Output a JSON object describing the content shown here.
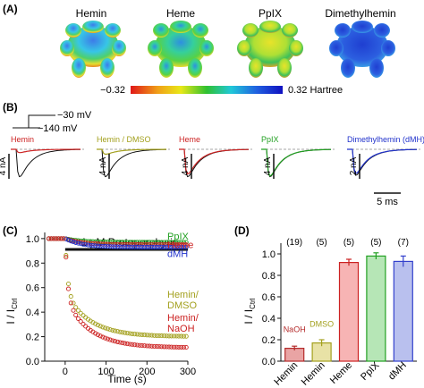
{
  "panels": {
    "A": {
      "label": "(A)",
      "molecules": [
        "Hemin",
        "Heme",
        "PpIX",
        "Dimethylhemin"
      ],
      "colorbar": {
        "min_label": "−0.32",
        "max_label": "0.32 Hartree"
      }
    },
    "B": {
      "label": "(B)",
      "protocol": {
        "v_hold": "−140 mV",
        "v_step": "−30 mV"
      },
      "traces": [
        {
          "name": "Hemin",
          "color": "#cc2222",
          "scale": "4 nA"
        },
        {
          "name": "Hemin / DMSO",
          "color": "#a3a01e",
          "scale": "4 nA"
        },
        {
          "name": "Heme",
          "color": "#cc2222",
          "scale": "4 nA"
        },
        {
          "name": "PpIX",
          "color": "#22a022",
          "scale": "4 nA"
        },
        {
          "name": "Dimethylhemin (dMH)",
          "color": "#2233cc",
          "scale": "2 nA"
        }
      ],
      "time_scale": "5 ms"
    },
    "C": {
      "label": "(C)"
    },
    "D": {
      "label": "(D)"
    }
  },
  "chart_data": [
    {
      "type": "scatter",
      "panel": "C",
      "title": "1 μM Protoporphyrin",
      "xlabel": "Time (s)",
      "ylabel": "I / I",
      "ylabel_sub": "Ctrl",
      "xlim": [
        -50,
        300
      ],
      "ylim": [
        0,
        1.05
      ],
      "xticks": [
        0,
        100,
        200,
        300
      ],
      "yticks": [
        0.0,
        0.2,
        0.4,
        0.6,
        0.8,
        1.0
      ],
      "ytick_labels": [
        "0.0",
        "0.2",
        "0.4",
        "0.6",
        "0.8",
        "1.0"
      ],
      "application_bar": [
        0,
        300
      ],
      "series": [
        {
          "name": "PpIX",
          "color": "#22a022",
          "tail": 0.97
        },
        {
          "name": "Heme",
          "color": "#cc2222",
          "tail": 0.95
        },
        {
          "name": "dMH",
          "color": "#2233cc",
          "tail": 0.93
        },
        {
          "name": "Hemin/\nDMSO",
          "color": "#a3a01e",
          "tail": 0.2
        },
        {
          "name": "Hemin/\nNaOH",
          "color": "#cc2222",
          "tail": 0.11
        }
      ]
    },
    {
      "type": "bar",
      "panel": "D",
      "ylabel": "I / I",
      "ylabel_sub": "Ctrl",
      "ylim": [
        0,
        1.1
      ],
      "yticks": [
        0.0,
        0.2,
        0.4,
        0.6,
        0.8,
        1.0
      ],
      "ytick_labels": [
        "0.0",
        "0.2",
        "0.4",
        "0.6",
        "0.8",
        "1.0"
      ],
      "categories": [
        "Hemin",
        "Hemin",
        "Heme",
        "PpIX",
        "dMH"
      ],
      "values": [
        0.12,
        0.17,
        0.92,
        0.98,
        0.93
      ],
      "errors": [
        0.02,
        0.03,
        0.03,
        0.03,
        0.05
      ],
      "n": [
        "(19)",
        "(5)",
        "(5)",
        "(5)",
        "(7)"
      ],
      "bar_notes": [
        "NaOH",
        "DMSO",
        "",
        "",
        ""
      ],
      "fill_colors": [
        "#e9a4a4",
        "#e8e2a6",
        "#f7b4b4",
        "#b6e6b6",
        "#b9c0ee"
      ],
      "edge_colors": [
        "#b42a2a",
        "#a3a01e",
        "#cc2222",
        "#22a022",
        "#3340cc"
      ]
    }
  ]
}
